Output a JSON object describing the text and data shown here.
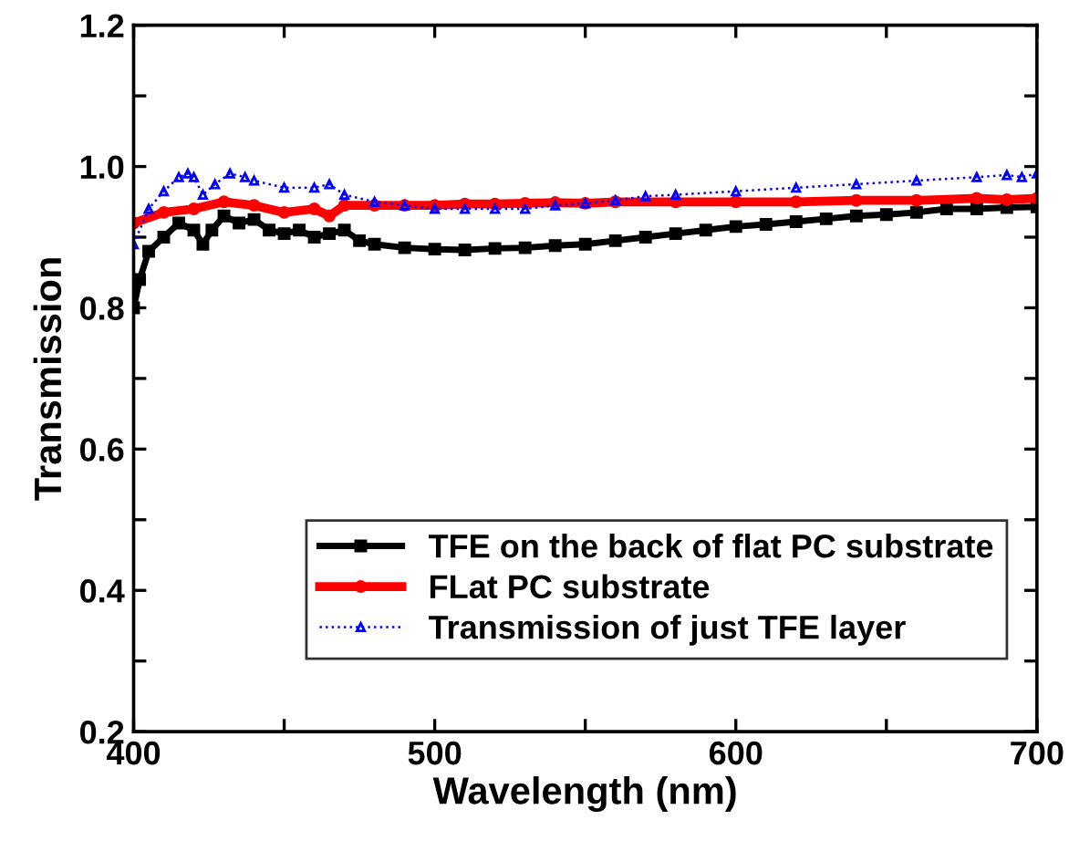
{
  "chart_data": {
    "type": "line",
    "xlabel": "Wavelength (nm)",
    "ylabel": "Transmission",
    "xlim": [
      400,
      700
    ],
    "ylim": [
      0.2,
      1.2
    ],
    "xticks": [
      400,
      {
        "value": 450,
        "label": null
      },
      500,
      {
        "value": 550,
        "label": null
      },
      600,
      {
        "value": 650,
        "label": null
      },
      700
    ],
    "yticks": [
      0.2,
      {
        "value": 0.3,
        "label": null
      },
      0.4,
      {
        "value": 0.5,
        "label": null
      },
      0.6,
      {
        "value": 0.7,
        "label": null
      },
      0.8,
      {
        "value": 0.9,
        "label": null
      },
      {
        "value": 1.0,
        "label": "1.0"
      },
      {
        "value": 1.1,
        "label": null
      },
      1.2
    ],
    "grid": false,
    "legend": "bottom right",
    "series": [
      {
        "name": "TFE on the back of flat PC substrate",
        "color": "#000000",
        "marker": "square",
        "line_style": "solid",
        "x": [
          400,
          402,
          405,
          410,
          415,
          420,
          423,
          426,
          430,
          435,
          440,
          445,
          450,
          455,
          460,
          465,
          470,
          475,
          480,
          490,
          500,
          510,
          520,
          530,
          540,
          550,
          560,
          570,
          580,
          590,
          600,
          610,
          620,
          630,
          640,
          650,
          660,
          670,
          680,
          690,
          700
        ],
        "values": [
          0.8,
          0.84,
          0.88,
          0.9,
          0.92,
          0.91,
          0.89,
          0.91,
          0.93,
          0.92,
          0.925,
          0.91,
          0.905,
          0.91,
          0.9,
          0.905,
          0.91,
          0.895,
          0.89,
          0.885,
          0.883,
          0.882,
          0.884,
          0.885,
          0.888,
          0.89,
          0.895,
          0.9,
          0.905,
          0.91,
          0.915,
          0.918,
          0.922,
          0.926,
          0.93,
          0.932,
          0.935,
          0.94,
          0.94,
          0.942,
          0.943
        ]
      },
      {
        "name": "FLat PC substrate",
        "color": "#ff0000",
        "marker": "circle",
        "line_style": "solid",
        "x": [
          400,
          410,
          420,
          430,
          440,
          450,
          460,
          465,
          470,
          480,
          490,
          500,
          510,
          520,
          530,
          540,
          550,
          560,
          580,
          600,
          620,
          640,
          660,
          680,
          690,
          700
        ],
        "values": [
          0.92,
          0.935,
          0.94,
          0.95,
          0.945,
          0.935,
          0.94,
          0.93,
          0.945,
          0.945,
          0.945,
          0.945,
          0.947,
          0.947,
          0.948,
          0.949,
          0.948,
          0.95,
          0.95,
          0.95,
          0.95,
          0.952,
          0.952,
          0.955,
          0.953,
          0.955
        ]
      },
      {
        "name": "Transmission of just TFE layer",
        "color": "#0000ff",
        "marker": "triangle",
        "line_style": "dotted",
        "x": [
          400,
          405,
          410,
          415,
          418,
          420,
          423,
          427,
          432,
          437,
          440,
          450,
          460,
          465,
          470,
          480,
          490,
          500,
          510,
          520,
          530,
          540,
          550,
          560,
          570,
          580,
          600,
          620,
          640,
          660,
          680,
          690,
          695,
          700
        ],
        "values": [
          0.89,
          0.94,
          0.965,
          0.985,
          0.99,
          0.985,
          0.96,
          0.975,
          0.99,
          0.985,
          0.98,
          0.97,
          0.97,
          0.975,
          0.96,
          0.95,
          0.945,
          0.94,
          0.94,
          0.94,
          0.94,
          0.945,
          0.948,
          0.952,
          0.958,
          0.96,
          0.965,
          0.97,
          0.975,
          0.98,
          0.985,
          0.988,
          0.985,
          0.99
        ]
      }
    ]
  }
}
